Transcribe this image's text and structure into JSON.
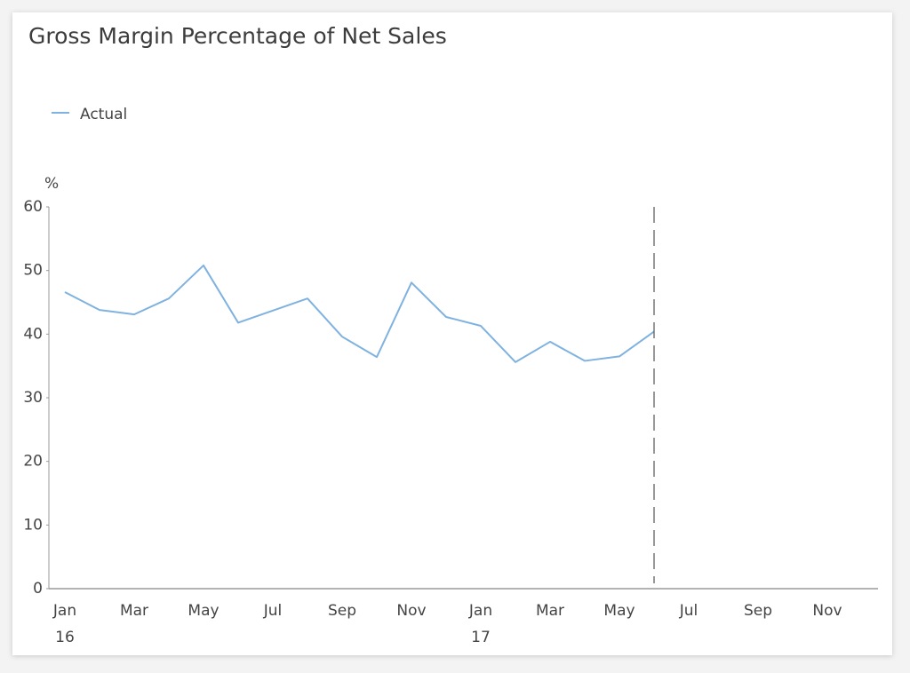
{
  "chart_data": {
    "type": "line",
    "title": "Gross Margin Percentage of Net Sales",
    "y_label": "%",
    "categories": [
      "Jan",
      null,
      "Mar",
      null,
      "May",
      null,
      "Jul",
      null,
      "Sep",
      null,
      "Nov",
      null,
      "Jan",
      null,
      "Mar",
      null,
      "May",
      null,
      "Jul",
      null,
      "Sep",
      null,
      "Nov",
      null
    ],
    "x_years": [
      "16",
      null,
      null,
      null,
      null,
      null,
      null,
      null,
      null,
      null,
      null,
      null,
      "17",
      null,
      null,
      null,
      null,
      null,
      null,
      null,
      null,
      null,
      null,
      null
    ],
    "series": [
      {
        "name": "Actual",
        "color": "#7fb2e0",
        "values": [
          46.6,
          43.8,
          43.1,
          45.6,
          50.8,
          41.8,
          43.7,
          45.6,
          39.6,
          36.4,
          48.1,
          42.7,
          41.3,
          35.6,
          38.8,
          35.8,
          36.5,
          40.4,
          null,
          null,
          null,
          null,
          null,
          null
        ]
      }
    ],
    "ylim": [
      0,
      60
    ],
    "yticks": [
      0,
      10,
      20,
      30,
      40,
      50,
      60
    ],
    "legend": "top-left",
    "grid": false
  }
}
